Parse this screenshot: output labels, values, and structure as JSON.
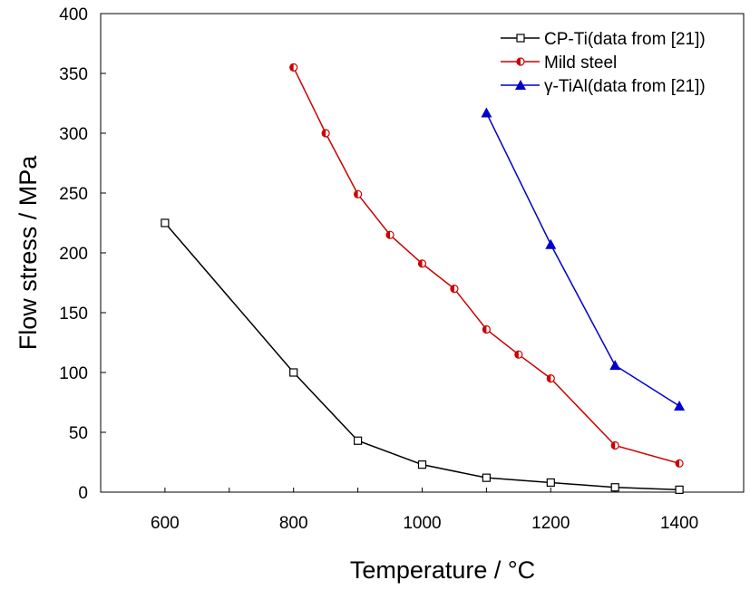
{
  "chart_data": {
    "type": "line",
    "xlabel": "Temperature / °C",
    "ylabel": "Flow stress / MPa",
    "xlim": [
      500,
      1500
    ],
    "ylim": [
      0,
      400
    ],
    "x_ticks": [
      600,
      800,
      1000,
      1200,
      1400
    ],
    "y_ticks": [
      0,
      50,
      100,
      150,
      200,
      250,
      300,
      350,
      400
    ],
    "grid": false,
    "legend_position": "top-right",
    "series": [
      {
        "name": "CP-Ti(data from [21])",
        "color": "#000000",
        "marker": "open-square",
        "x": [
          600,
          800,
          900,
          1000,
          1100,
          1200,
          1300,
          1400
        ],
        "y": [
          225,
          100,
          43,
          23,
          12,
          8,
          4,
          2
        ]
      },
      {
        "name": "Mild steel",
        "color": "#cc0000",
        "marker": "half-filled-circle",
        "x": [
          800,
          850,
          900,
          950,
          1000,
          1050,
          1100,
          1150,
          1200,
          1300,
          1400
        ],
        "y": [
          355,
          300,
          249,
          215,
          191,
          170,
          136,
          115,
          95,
          39,
          24
        ]
      },
      {
        "name": "γ-TiAl(data from [21])",
        "color": "#0000cc",
        "marker": "filled-triangle",
        "x": [
          1100,
          1200,
          1300,
          1400
        ],
        "y": [
          317,
          207,
          106,
          72
        ]
      }
    ]
  }
}
